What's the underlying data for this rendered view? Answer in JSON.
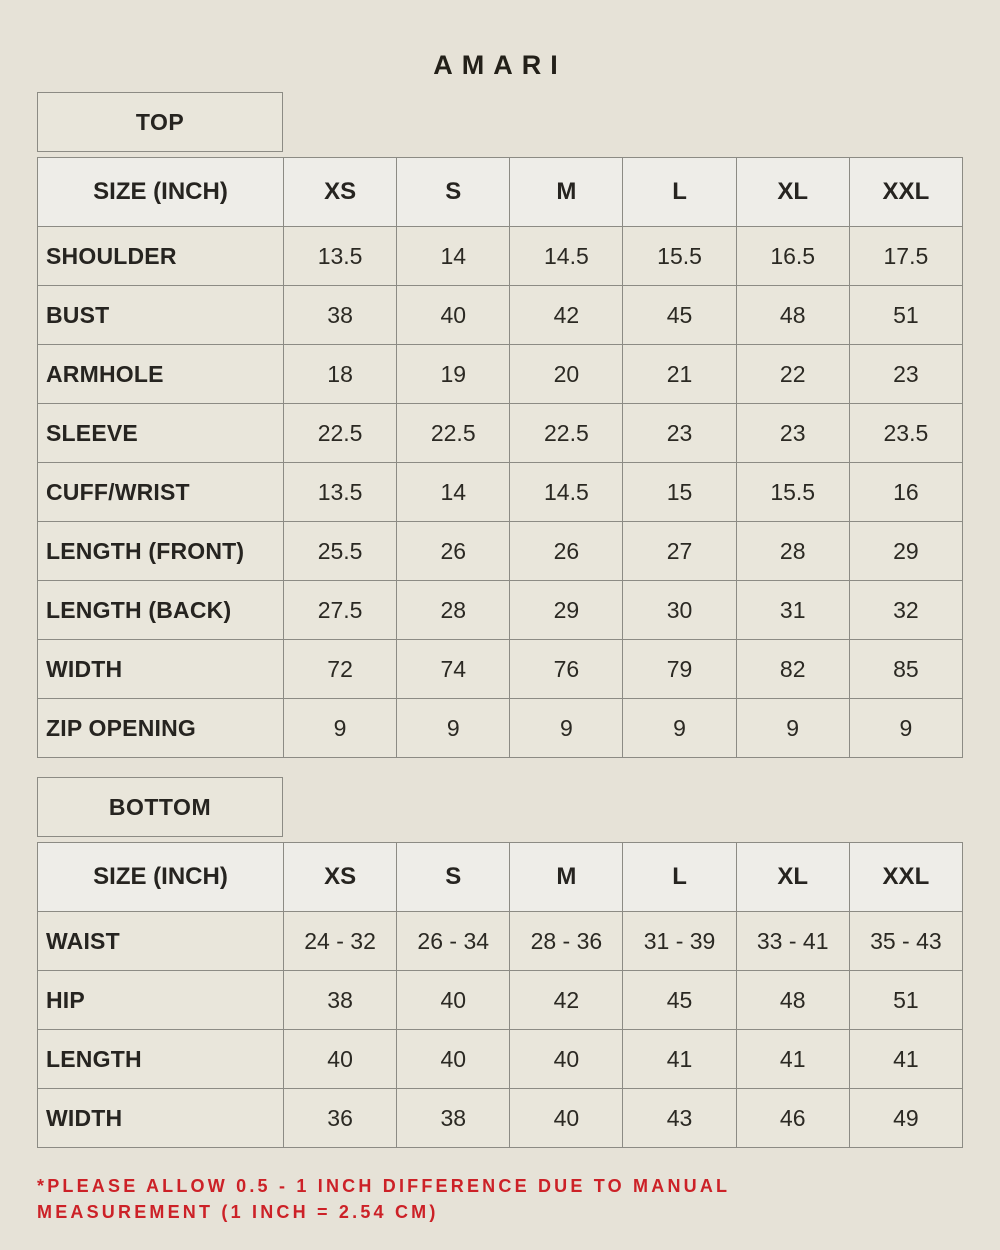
{
  "title": "AMARI",
  "sections": [
    {
      "name": "TOP",
      "header": [
        "SIZE (INCH)",
        "XS",
        "S",
        "M",
        "L",
        "XL",
        "XXL"
      ],
      "rows": [
        {
          "label": "SHOULDER",
          "values": [
            "13.5",
            "14",
            "14.5",
            "15.5",
            "16.5",
            "17.5"
          ]
        },
        {
          "label": "BUST",
          "values": [
            "38",
            "40",
            "42",
            "45",
            "48",
            "51"
          ]
        },
        {
          "label": "ARMHOLE",
          "values": [
            "18",
            "19",
            "20",
            "21",
            "22",
            "23"
          ]
        },
        {
          "label": "SLEEVE",
          "values": [
            "22.5",
            "22.5",
            "22.5",
            "23",
            "23",
            "23.5"
          ]
        },
        {
          "label": "CUFF/WRIST",
          "values": [
            "13.5",
            "14",
            "14.5",
            "15",
            "15.5",
            "16"
          ]
        },
        {
          "label": "LENGTH (FRONT)",
          "values": [
            "25.5",
            "26",
            "26",
            "27",
            "28",
            "29"
          ]
        },
        {
          "label": "LENGTH (BACK)",
          "values": [
            "27.5",
            "28",
            "29",
            "30",
            "31",
            "32"
          ]
        },
        {
          "label": "WIDTH",
          "values": [
            "72",
            "74",
            "76",
            "79",
            "82",
            "85"
          ]
        },
        {
          "label": "ZIP OPENING",
          "values": [
            "9",
            "9",
            "9",
            "9",
            "9",
            "9"
          ]
        }
      ]
    },
    {
      "name": "BOTTOM",
      "header": [
        "SIZE (INCH)",
        "XS",
        "S",
        "M",
        "L",
        "XL",
        "XXL"
      ],
      "rows": [
        {
          "label": "WAIST",
          "values": [
            "24 - 32",
            "26 - 34",
            "28 - 36",
            "31 - 39",
            "33 - 41",
            "35 - 43"
          ]
        },
        {
          "label": "HIP",
          "values": [
            "38",
            "40",
            "42",
            "45",
            "48",
            "51"
          ]
        },
        {
          "label": "LENGTH",
          "values": [
            "40",
            "40",
            "40",
            "41",
            "41",
            "41"
          ]
        },
        {
          "label": "WIDTH",
          "values": [
            "36",
            "38",
            "40",
            "43",
            "46",
            "49"
          ]
        }
      ]
    }
  ],
  "footnote": {
    "lines": [
      "*PLEASE ALLOW 0.5 - 1 INCH DIFFERENCE DUE TO MANUAL",
      "MEASUREMENT (1 INCH = 2.54 CM)"
    ]
  },
  "colors": {
    "background": "#e6e2d7",
    "cell_background": "#e9e6db",
    "header_background": "#eeede8",
    "border": "#8c8b84",
    "text": "#262420",
    "accent_red": "#cc2127"
  }
}
